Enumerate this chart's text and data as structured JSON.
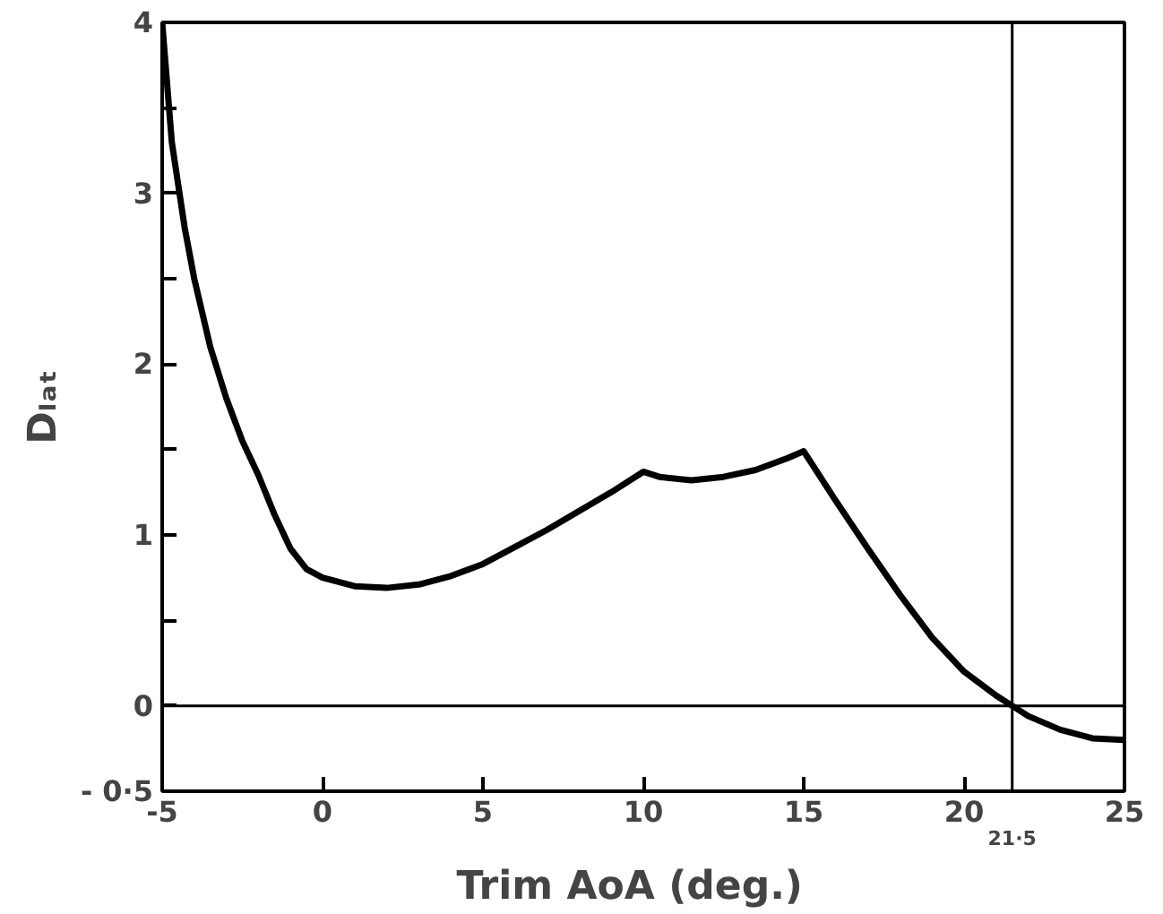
{
  "chart_data": {
    "type": "line",
    "xlabel": "Trim  AoA  (deg.)",
    "ylabel": "Dₗₐₜ",
    "series": [
      {
        "color": "#000000",
        "x": [
          -5,
          -4.7,
          -4.3,
          -4,
          -3.5,
          -3,
          -2.5,
          -2,
          -1.5,
          -1,
          -0.5,
          0,
          1,
          2,
          3,
          4,
          5,
          6,
          7,
          8,
          9,
          10,
          10.5,
          11.5,
          12.5,
          13.5,
          14.5,
          15,
          16,
          17,
          18,
          19,
          20,
          21,
          21.5,
          22,
          23,
          24,
          25
        ],
        "values": [
          4.0,
          3.3,
          2.8,
          2.5,
          2.1,
          1.8,
          1.55,
          1.35,
          1.12,
          0.92,
          0.8,
          0.75,
          0.7,
          0.69,
          0.71,
          0.76,
          0.83,
          0.93,
          1.03,
          1.14,
          1.25,
          1.37,
          1.34,
          1.32,
          1.34,
          1.38,
          1.45,
          1.49,
          1.2,
          0.92,
          0.65,
          0.4,
          0.2,
          0.06,
          0.0,
          -0.06,
          -0.14,
          -0.19,
          -0.2
        ]
      }
    ],
    "xlim": [
      -5,
      25
    ],
    "ylim": [
      -0.5,
      4
    ],
    "xticks": [
      -5,
      0,
      5,
      10,
      15,
      20,
      25
    ],
    "yticks": [
      {
        "value": -0.5,
        "label": "- 0·5"
      },
      0,
      {
        "value": 0.5,
        "label": null
      },
      1,
      {
        "value": 1.5,
        "label": null
      },
      2,
      {
        "value": 2.5,
        "label": null
      },
      3,
      {
        "value": 3.5,
        "label": null
      },
      4
    ],
    "ref_lines": [
      {
        "axis": "y",
        "value": 0
      },
      {
        "axis": "x",
        "value": 21.5,
        "label": "21·5"
      }
    ],
    "grid": false,
    "marker": "none",
    "line_style": "solid"
  }
}
